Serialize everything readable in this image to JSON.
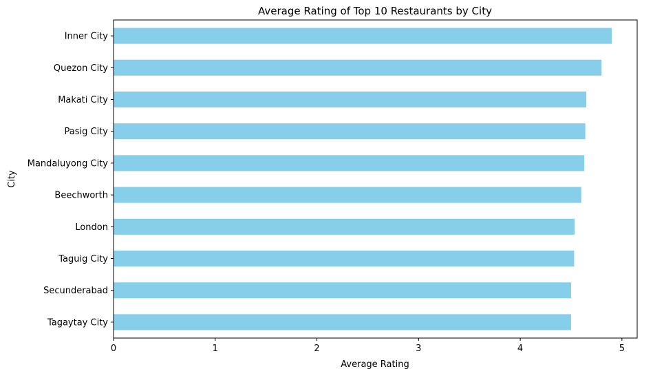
{
  "chart_data": {
    "type": "bar",
    "orientation": "horizontal",
    "title": "Average Rating of Top 10 Restaurants by City",
    "xlabel": "Average Rating",
    "ylabel": "City",
    "categories": [
      "Tagaytay City",
      "Secunderabad",
      "Taguig City",
      "London",
      "Beechworth",
      "Mandaluyong City",
      "Pasig City",
      "Makati City",
      "Quezon City",
      "Inner City"
    ],
    "values": [
      4.5,
      4.5,
      4.53,
      4.535,
      4.6,
      4.63,
      4.64,
      4.65,
      4.8,
      4.9
    ],
    "xlim": [
      0,
      5.15
    ],
    "xticks": [
      "0",
      "1",
      "2",
      "3",
      "4",
      "5"
    ],
    "bar_color": "#87CEEB",
    "grid": false,
    "legend": "none"
  }
}
